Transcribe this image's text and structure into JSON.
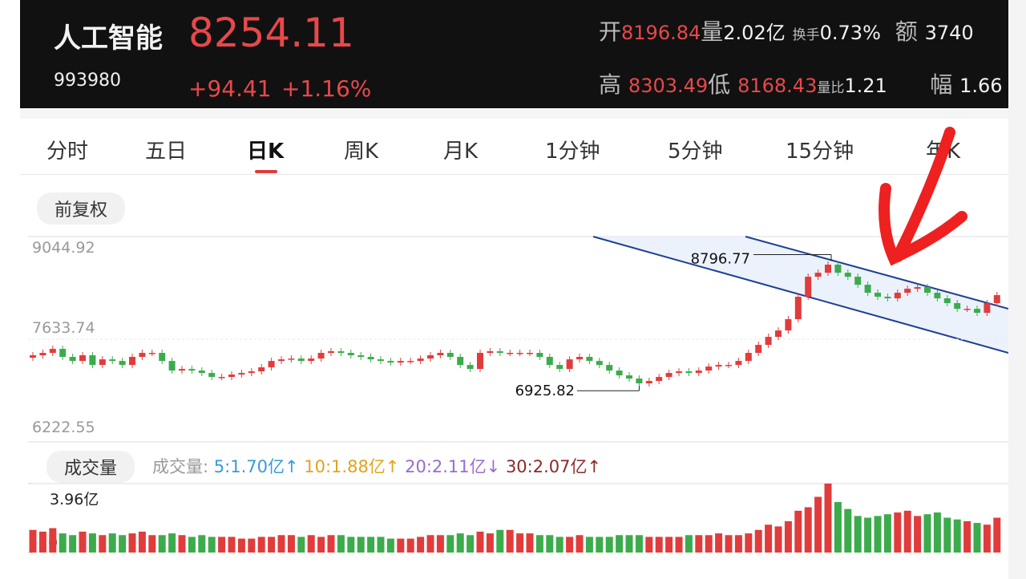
{
  "header": {
    "name": "人工智能",
    "code": "993980",
    "price": "8254.11",
    "change": "+94.41",
    "change_pct": "+1.16%",
    "stats": [
      {
        "label": "开",
        "value": "8196.84"
      },
      {
        "label": "量",
        "value": "2.02亿"
      },
      {
        "label": "换手",
        "value": "0.73%"
      },
      {
        "label": "额",
        "value": "3740"
      },
      {
        "label": "高",
        "value": "8303.49"
      },
      {
        "label": "低",
        "value": "8168.43"
      },
      {
        "label": "量比",
        "value": "1.21"
      },
      {
        "label": "幅",
        "value": "1.66"
      }
    ]
  },
  "tabs": [
    "分时",
    "五日",
    "日K",
    "周K",
    "月K",
    "1分钟",
    "5分钟",
    "15分钟",
    "年K"
  ],
  "adjust": "前复权",
  "chart_data": {
    "type": "candlestick",
    "open": [
      7380,
      7413,
      7446,
      7501,
      7391,
      7335,
      7413,
      7280,
      7357,
      7335,
      7280,
      7391,
      7446,
      7446,
      7335,
      7203,
      7225,
      7203,
      7170,
      7115,
      7115,
      7148,
      7170,
      7192,
      7247,
      7335,
      7357,
      7368,
      7335,
      7368,
      7446,
      7468,
      7446,
      7413,
      7391,
      7357,
      7335,
      7313,
      7335,
      7335,
      7368,
      7413,
      7446,
      7391,
      7280,
      7225,
      7446,
      7468,
      7446,
      7446,
      7446,
      7446,
      7391,
      7280,
      7225,
      7357,
      7391,
      7335,
      7280,
      7203,
      7137,
      7093,
      7027,
      7060,
      7115,
      7170,
      7192,
      7170,
      7203,
      7258,
      7280,
      7280,
      7335,
      7446,
      7556,
      7666,
      7754,
      7909,
      8218,
      8493,
      8548,
      8659,
      8548,
      8493,
      8383,
      8273,
      8218,
      8196,
      8273,
      8328,
      8350,
      8273,
      8196,
      8130,
      8052,
      8052,
      7997,
      8130
    ],
    "close": [
      7413,
      7446,
      7501,
      7391,
      7335,
      7413,
      7280,
      7357,
      7335,
      7280,
      7391,
      7446,
      7446,
      7335,
      7203,
      7225,
      7203,
      7170,
      7115,
      7115,
      7148,
      7170,
      7192,
      7247,
      7335,
      7357,
      7368,
      7335,
      7368,
      7446,
      7468,
      7446,
      7413,
      7391,
      7357,
      7335,
      7313,
      7335,
      7335,
      7368,
      7413,
      7446,
      7391,
      7280,
      7225,
      7446,
      7468,
      7446,
      7446,
      7446,
      7446,
      7391,
      7280,
      7225,
      7357,
      7391,
      7335,
      7280,
      7203,
      7137,
      7093,
      7027,
      7060,
      7115,
      7170,
      7192,
      7170,
      7203,
      7258,
      7280,
      7280,
      7335,
      7446,
      7556,
      7666,
      7754,
      7909,
      8218,
      8493,
      8548,
      8659,
      8548,
      8493,
      8383,
      8273,
      8218,
      8196,
      8273,
      8328,
      8350,
      8273,
      8196,
      8130,
      8052,
      8052,
      7997,
      8130,
      8240
    ],
    "ylim": [
      6222.55,
      9044.92
    ],
    "yticks": [
      9044.92,
      7633.74,
      6222.55
    ],
    "max": 8796.77,
    "min": 6925.82,
    "volume": {
      "title": "成交量",
      "legend_title": "成交量:",
      "ma": [
        {
          "label": "5:1.70亿↑",
          "color": "#3a9ad9"
        },
        {
          "label": "10:1.88亿↑",
          "color": "#e3a21e"
        },
        {
          "label": "20:2.11亿↓",
          "color": "#9a6ccc"
        },
        {
          "label": "30:2.07亿↑",
          "color": "#8b2a2a"
        }
      ],
      "values": [
        1.3,
        1.2,
        1.4,
        1.1,
        1.0,
        1.2,
        1.1,
        1.0,
        1.1,
        1.0,
        1.1,
        1.2,
        1.0,
        1.0,
        1.1,
        1.0,
        0.9,
        1.0,
        0.9,
        0.9,
        0.9,
        0.8,
        0.8,
        0.9,
        0.9,
        1.0,
        1.0,
        0.9,
        1.0,
        0.9,
        1.0,
        1.0,
        0.9,
        0.9,
        0.9,
        0.9,
        0.8,
        0.8,
        0.8,
        0.9,
        1.0,
        1.0,
        1.0,
        1.1,
        1.0,
        1.2,
        1.1,
        1.3,
        1.3,
        1.1,
        1.1,
        1.0,
        1.0,
        0.9,
        0.9,
        1.0,
        0.9,
        0.9,
        0.9,
        1.0,
        1.0,
        1.0,
        0.9,
        0.9,
        0.9,
        0.9,
        1.0,
        1.0,
        1.0,
        1.1,
        1.0,
        1.0,
        1.1,
        1.3,
        1.6,
        1.5,
        1.8,
        2.4,
        2.6,
        3.2,
        3.96,
        2.9,
        2.5,
        2.1,
        2.0,
        2.1,
        2.2,
        2.3,
        2.4,
        2.1,
        2.2,
        2.3,
        2.0,
        1.9,
        1.8,
        1.7,
        1.6,
        2.0
      ],
      "ylim": [
        0,
        3.96
      ],
      "yticks": [
        0,
        {
          "value": 3.96,
          "label": "3.96亿"
        }
      ]
    },
    "up_color": "#e03c3c",
    "down_color": "#3cab4c"
  }
}
